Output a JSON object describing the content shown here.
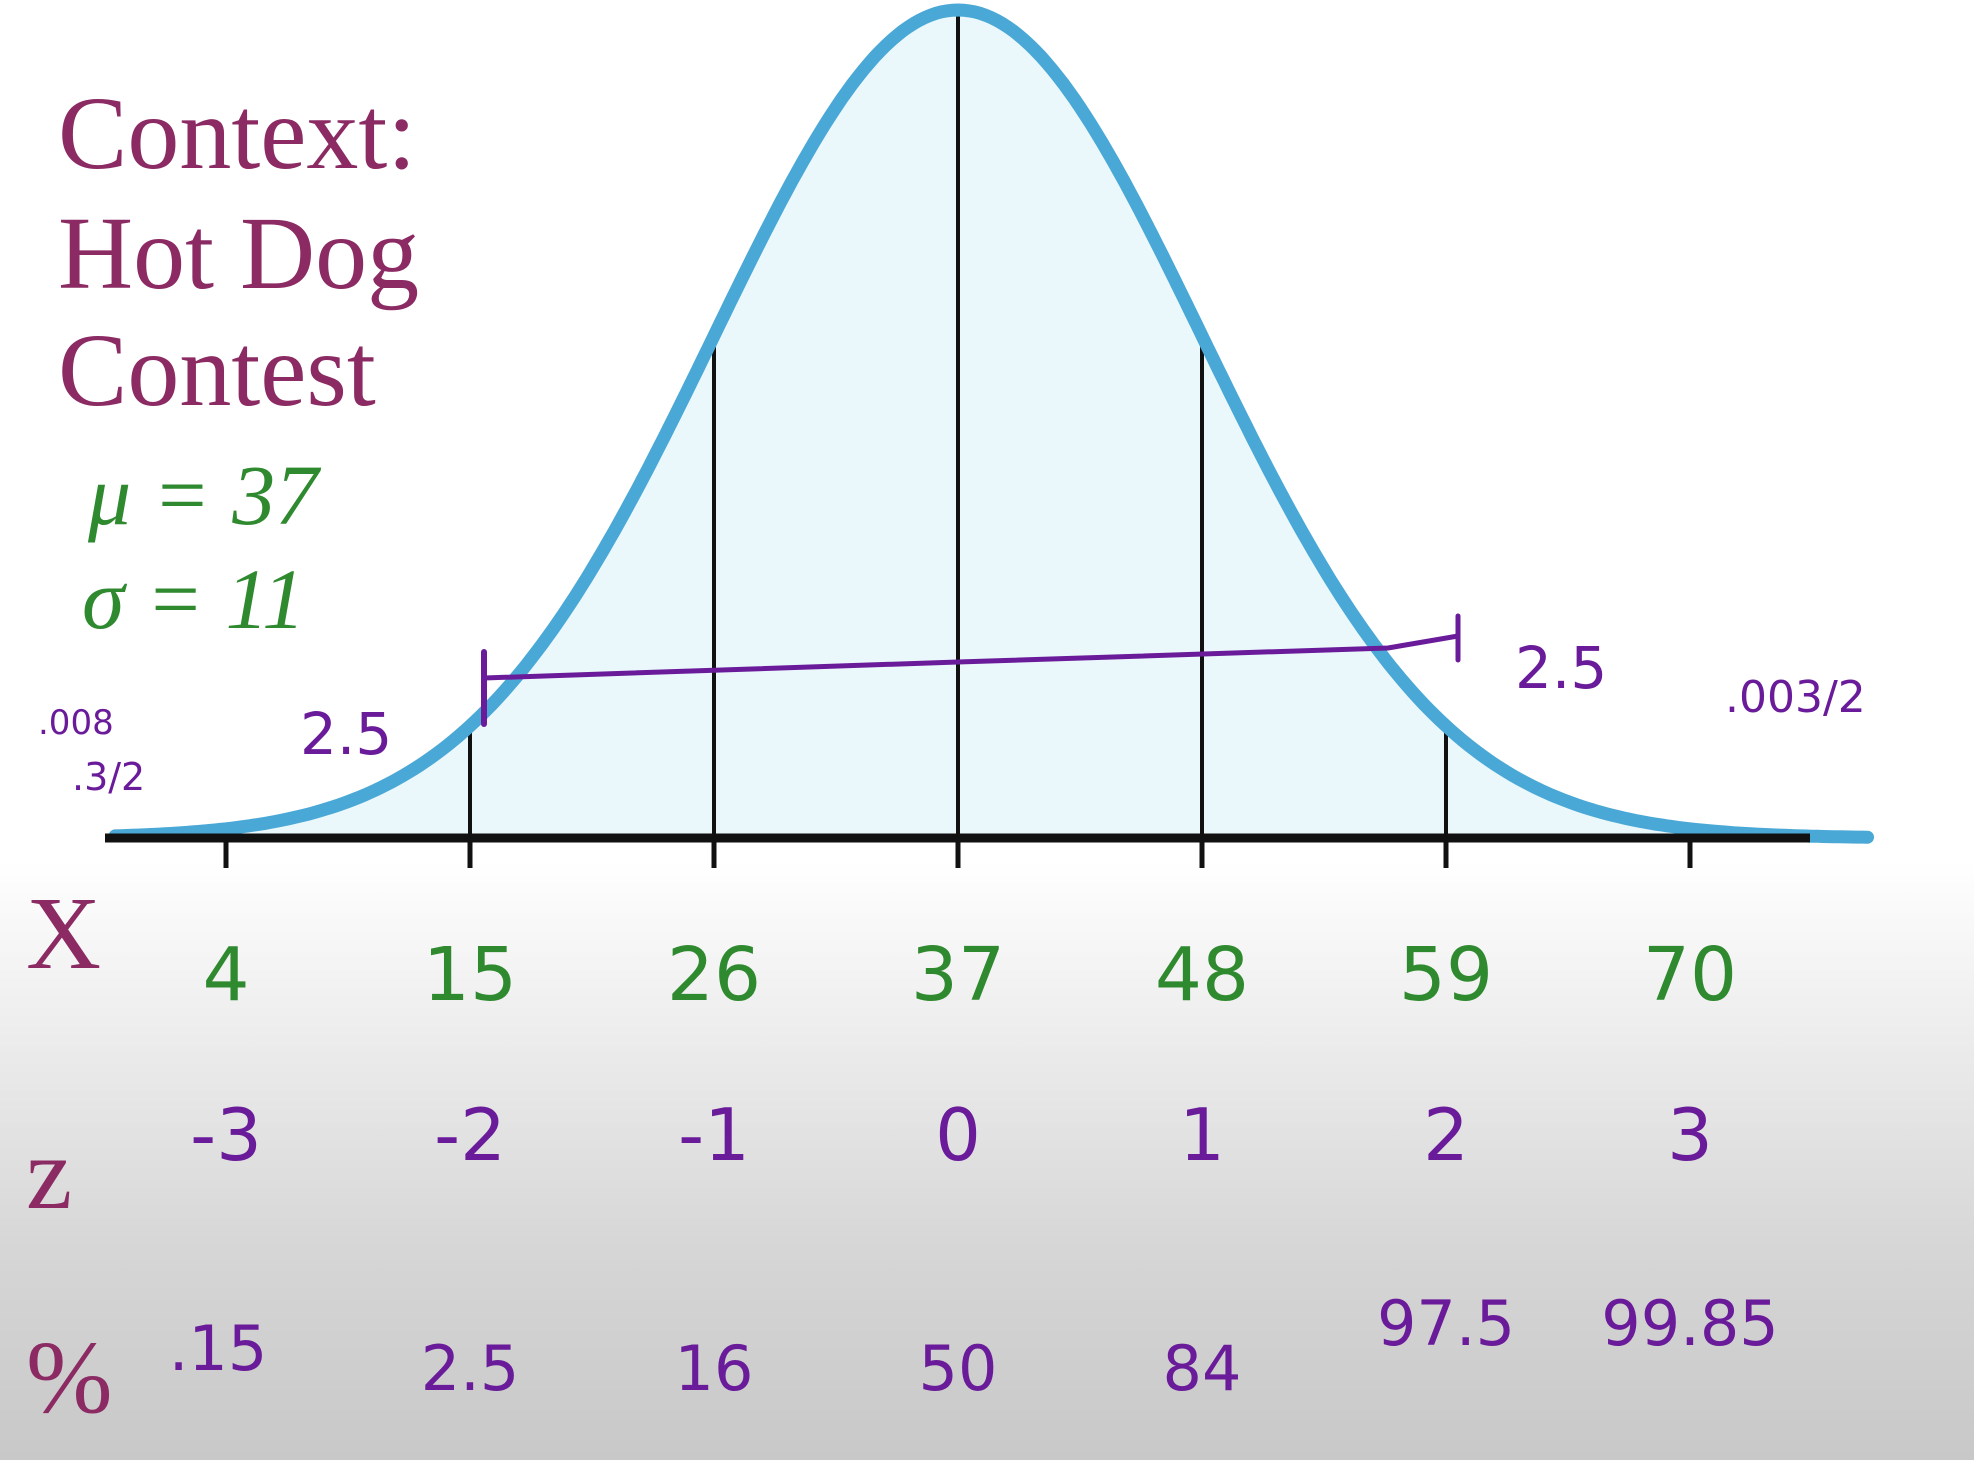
{
  "context": {
    "line1": "Context:",
    "line2": "Hot Dog",
    "line3": "Contest",
    "mu": "μ = 37",
    "sigma": "σ = 11"
  },
  "rows": {
    "x_label": "X",
    "z_label": "z",
    "pct_label": "%"
  },
  "points": [
    {
      "x": "4",
      "z": "-3",
      "pct": ".15"
    },
    {
      "x": "15",
      "z": "-2",
      "pct": "2.5"
    },
    {
      "x": "26",
      "z": "-1",
      "pct": "16"
    },
    {
      "x": "37",
      "z": "0",
      "pct": "50"
    },
    {
      "x": "48",
      "z": "1",
      "pct": "84"
    },
    {
      "x": "59",
      "z": "2",
      "pct": "97.5"
    },
    {
      "x": "70",
      "z": "3",
      "pct": "99.85"
    }
  ],
  "annotations": {
    "left_pct": "2.5",
    "right_pct": "2.5",
    "left_tail_a": ".008",
    "left_tail_b": ".3/2",
    "right_tail": ".003/2"
  },
  "distribution": {
    "mean": 37,
    "sd": 11,
    "range": [
      0,
      78
    ],
    "interval": [
      15,
      59
    ]
  },
  "colors": {
    "title": "#8b2a63",
    "green": "#2f8a2f",
    "purple": "#6a1b9a",
    "curve": "#4aa8d6",
    "fill": "#eaf8fc",
    "axis": "#111111"
  }
}
